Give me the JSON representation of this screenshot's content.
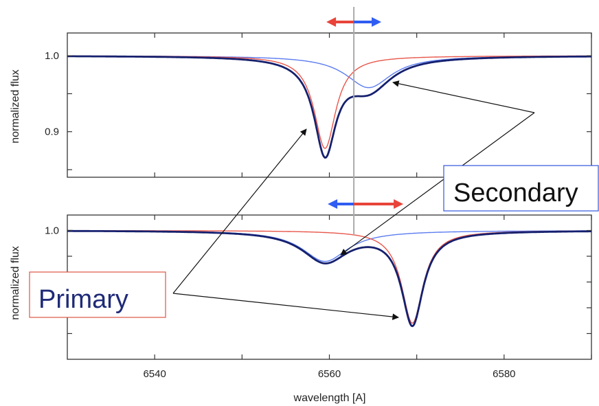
{
  "chart_data": [
    {
      "type": "line",
      "panel": "top",
      "ylabel": "normalized flux",
      "xlim": [
        6530,
        6590
      ],
      "ylim": [
        0.84,
        1.03
      ],
      "yticks": [
        0.9,
        1.0
      ],
      "ytick_labels": [
        "0.9",
        "1.0"
      ],
      "grid": false,
      "lines": {
        "primary": {
          "center": 6559.5,
          "depth": 0.122,
          "width": 1.5,
          "color": "#e8564a"
        },
        "secondary": {
          "center": 6564.5,
          "depth": 0.042,
          "width": 3.2,
          "color": "#5b7cf0"
        },
        "combined": {
          "color": "#15206e"
        }
      },
      "arrows": [
        {
          "direction": "left",
          "color": "#e8443a"
        },
        {
          "direction": "right",
          "color": "#2f5cf2"
        }
      ]
    },
    {
      "type": "line",
      "panel": "bottom",
      "xlabel": "wavelength [A]",
      "ylabel": "normalized flux",
      "xlim": [
        6530,
        6590
      ],
      "ylim": [
        0.75,
        1.03
      ],
      "xticks": [
        6540,
        6560,
        6580
      ],
      "xtick_labels": [
        "6540",
        "6560",
        "6580"
      ],
      "yticks": [
        1.0
      ],
      "ytick_labels": [
        "1.0"
      ],
      "grid": false,
      "lines": {
        "primary": {
          "center": 6569.5,
          "depth": 0.18,
          "width": 1.5,
          "color": "#e8564a"
        },
        "secondary": {
          "center": 6559.5,
          "depth": 0.06,
          "width": 3.2,
          "color": "#5b7cf0"
        },
        "combined": {
          "color": "#15206e"
        }
      },
      "arrows": [
        {
          "direction": "left",
          "color": "#2f5cf2"
        },
        {
          "direction": "right",
          "color": "#e8443a"
        }
      ]
    }
  ],
  "vertical_marker_x": 6562.8,
  "labels": {
    "primary": "Primary",
    "secondary": "Secondary"
  }
}
